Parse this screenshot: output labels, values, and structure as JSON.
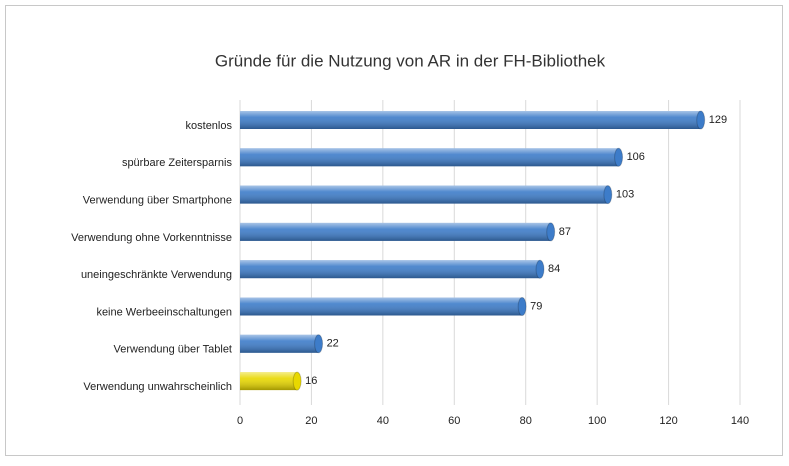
{
  "chart_data": {
    "type": "bar",
    "orientation": "horizontal",
    "title": "Gründe für die Nutzung von AR in der FH-Bibliothek",
    "categories": [
      "kostenlos",
      "spürbare Zeitersparnis",
      "Verwendung über Smartphone",
      "Verwendung ohne Vorkenntnisse",
      "uneingeschränkte Verwendung",
      "keine Werbeeinschaltungen",
      "Verwendung über Tablet",
      "Verwendung unwahrscheinlich"
    ],
    "values": [
      129,
      106,
      103,
      87,
      84,
      79,
      22,
      16
    ],
    "colors": [
      "#3d7cc9",
      "#3d7cc9",
      "#3d7cc9",
      "#3d7cc9",
      "#3d7cc9",
      "#3d7cc9",
      "#3d7cc9",
      "#e8d800"
    ],
    "xlim": [
      0,
      140
    ],
    "xticks": [
      0,
      20,
      40,
      60,
      80,
      100,
      120,
      140
    ],
    "grid": true
  }
}
